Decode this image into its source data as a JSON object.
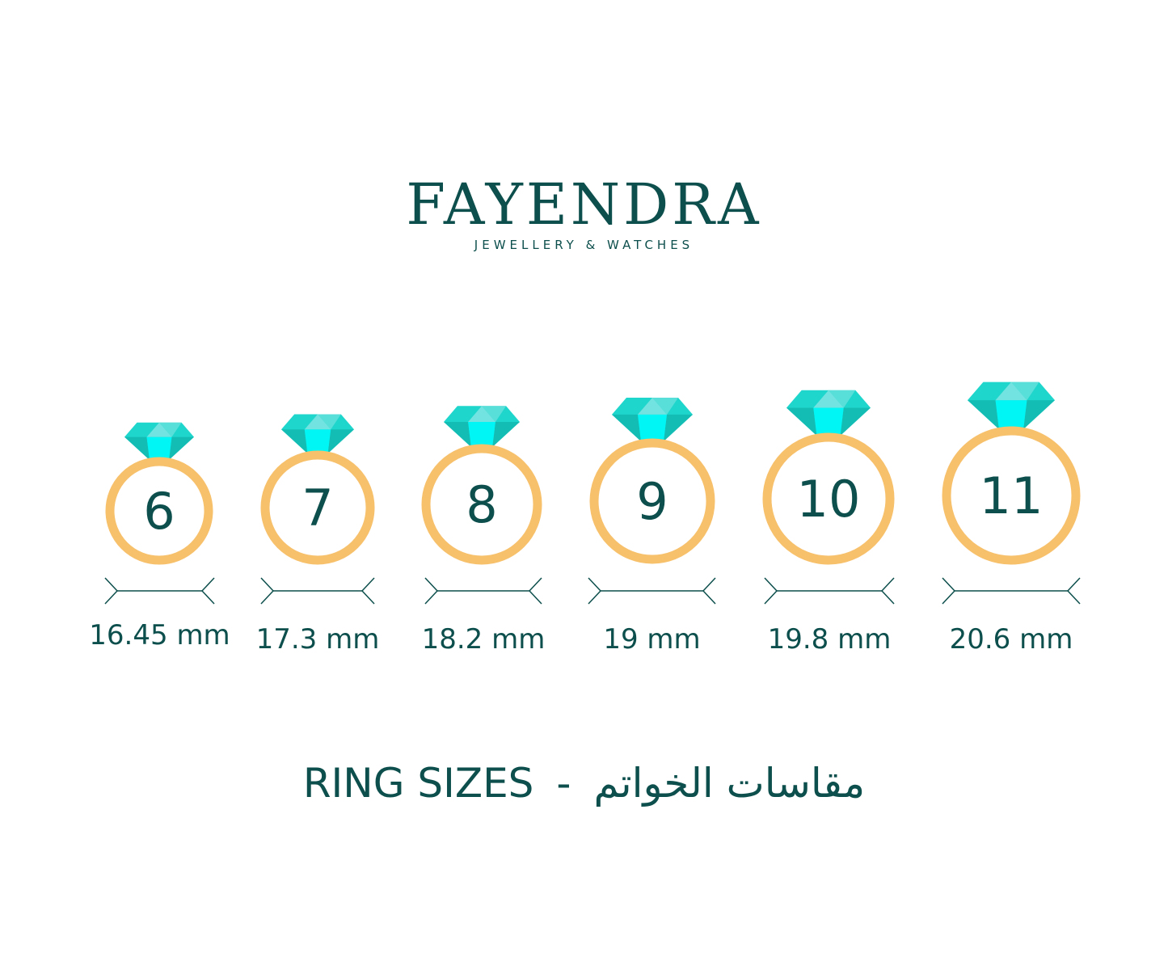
{
  "brand": {
    "name": "FAYENDRA",
    "tagline": "JEWELLERY & WATCHES"
  },
  "rings": [
    {
      "size": "6",
      "diameter": "16.45 mm"
    },
    {
      "size": "7",
      "diameter": "17.3 mm"
    },
    {
      "size": "8",
      "diameter": "18.2 mm"
    },
    {
      "size": "9",
      "diameter": "19 mm"
    },
    {
      "size": "10",
      "diameter": "19.8 mm"
    },
    {
      "size": "11",
      "diameter": "20.6 mm"
    }
  ],
  "title": {
    "english": "RING SIZES",
    "separator": "-",
    "arabic": "مقاسات الخواتم"
  },
  "colors": {
    "text": "#0d4f4c",
    "ring": "#f7c06b",
    "gem_dark": "#14bdb4",
    "gem_mid": "#1fd6cc",
    "gem_light": "#72e3e0",
    "gem_bright": "#00f5f5"
  }
}
